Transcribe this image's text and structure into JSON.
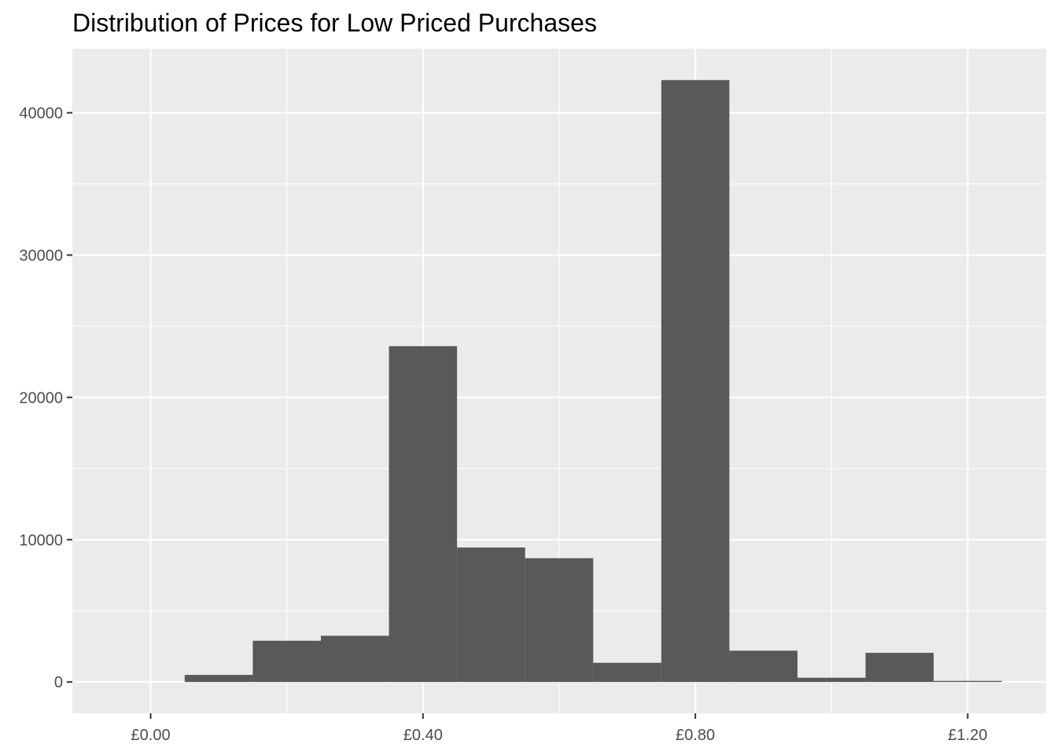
{
  "chart_data": {
    "type": "bar",
    "title": "Distribution of Prices for Low Priced Purchases",
    "xlabel": "",
    "ylabel": "",
    "xlim": [
      -0.115,
      1.315
    ],
    "ylim": [
      -2200,
      44500
    ],
    "x_ticks": [
      {
        "value": 0.0,
        "label": "£0.00"
      },
      {
        "value": 0.4,
        "label": "£0.40"
      },
      {
        "value": 0.8,
        "label": "£0.80"
      },
      {
        "value": 1.2,
        "label": "£1.20"
      }
    ],
    "x_minor_ticks": [
      0.2,
      0.6,
      1.0
    ],
    "y_ticks": [
      {
        "value": 0,
        "label": "0"
      },
      {
        "value": 10000,
        "label": "10000"
      },
      {
        "value": 20000,
        "label": "20000"
      },
      {
        "value": 30000,
        "label": "30000"
      },
      {
        "value": 40000,
        "label": "40000"
      }
    ],
    "y_minor_ticks": [
      5000,
      15000,
      25000,
      35000
    ],
    "bin_width": 0.1,
    "bins": [
      {
        "center": 0.1,
        "count": 500
      },
      {
        "center": 0.2,
        "count": 2900
      },
      {
        "center": 0.3,
        "count": 3250
      },
      {
        "center": 0.4,
        "count": 23600
      },
      {
        "center": 0.5,
        "count": 9450
      },
      {
        "center": 0.6,
        "count": 8700
      },
      {
        "center": 0.7,
        "count": 1350
      },
      {
        "center": 0.8,
        "count": 42300
      },
      {
        "center": 0.9,
        "count": 2200
      },
      {
        "center": 1.0,
        "count": 300
      },
      {
        "center": 1.1,
        "count": 2050
      },
      {
        "center": 1.2,
        "count": 80
      }
    ],
    "grid": true,
    "colors": {
      "panel_background": "#ebebeb",
      "bar_fill": "#595959",
      "gridline": "#ffffff",
      "tick_label": "#4d4d4d",
      "title": "#000000"
    }
  }
}
